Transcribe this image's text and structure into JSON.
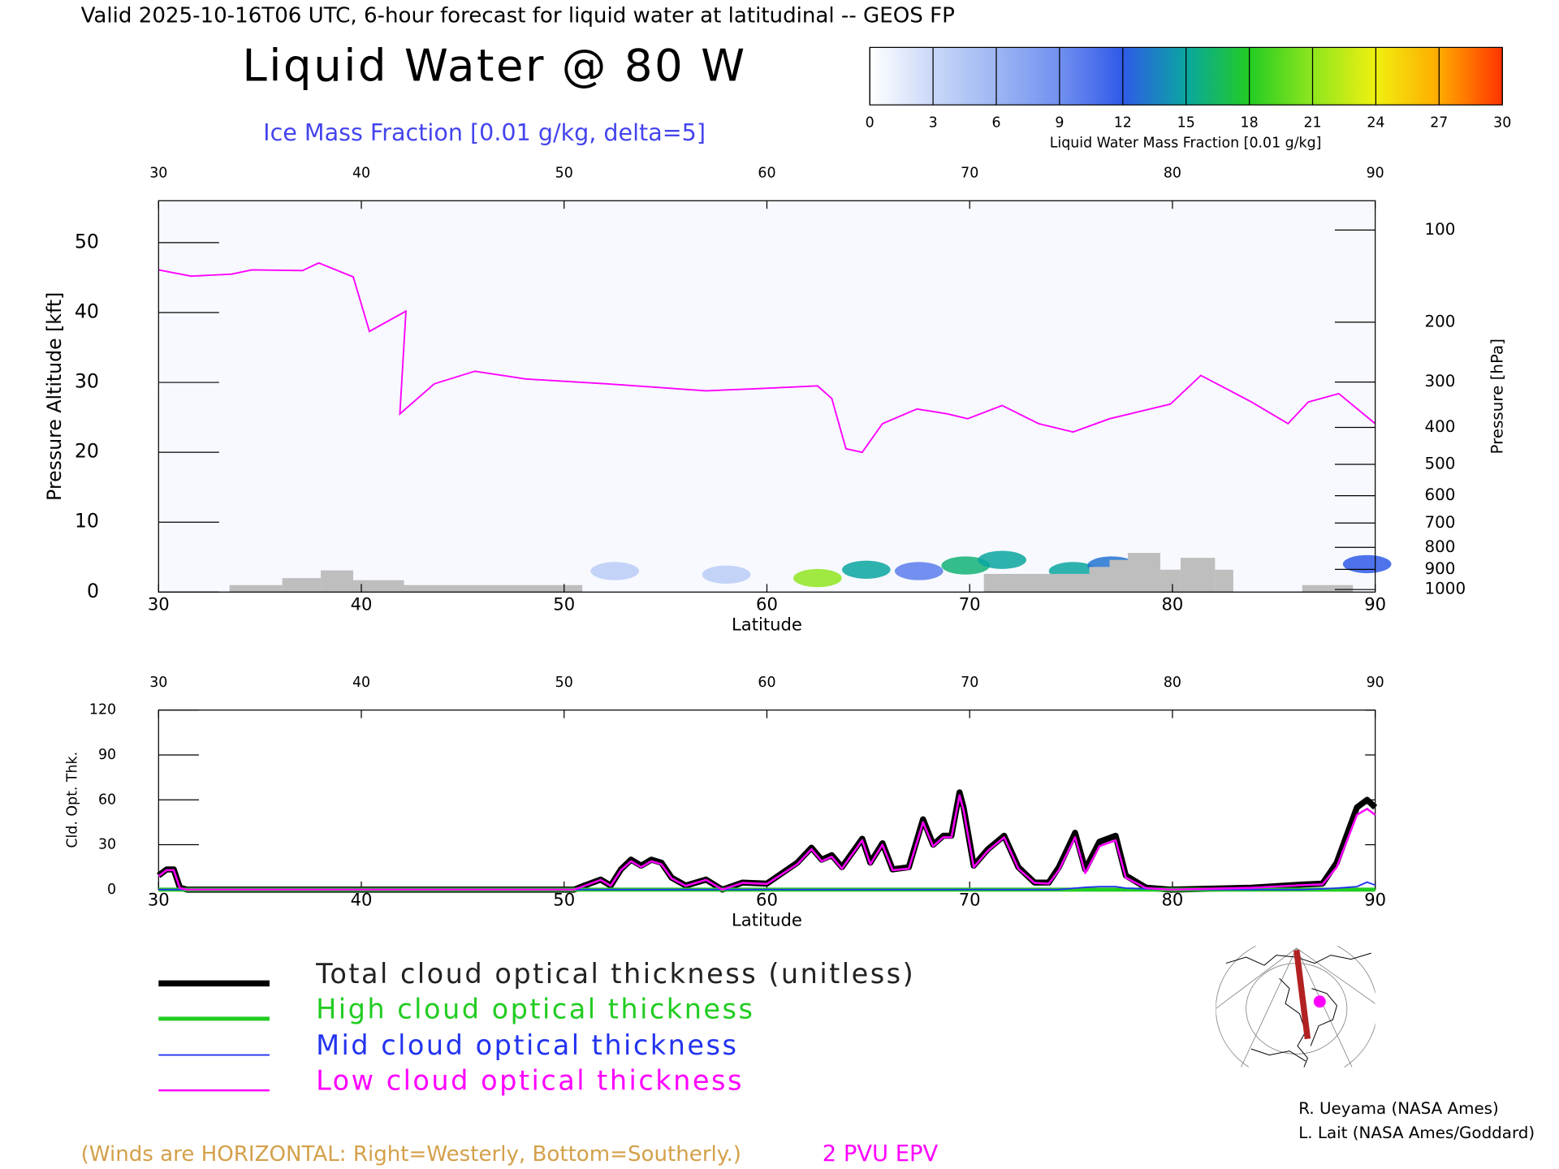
{
  "header": "Valid 2025-10-16T06 UTC, 6-hour forecast for liquid water at latitudinal -- GEOS FP",
  "chart_data": [
    {
      "type": "colorbar",
      "title": "Liquid Water Mass Fraction [0.01 g/kg]",
      "lim": [
        0,
        30
      ],
      "ticks": [
        0,
        3,
        6,
        9,
        12,
        15,
        18,
        21,
        24,
        27,
        30
      ],
      "colors": [
        "#ffffff",
        "#c9d8f8",
        "#9db6f4",
        "#7290f0",
        "#2f5ae8",
        "#0aa6a0",
        "#22cc22",
        "#8fe61e",
        "#f0f010",
        "#ffaa00",
        "#ff3300"
      ]
    },
    {
      "type": "cross-section",
      "title": "Liquid Water @ 80 W",
      "subtitle": "Ice Mass Fraction [0.01 g/kg, delta=5]",
      "x_label": "Latitude",
      "y_label": "Pressure Altitude [kft]",
      "y2_label": "Pressure [hPa]",
      "xlim": [
        30,
        90
      ],
      "xticks": [
        30,
        40,
        50,
        60,
        70,
        80,
        90
      ],
      "ylim": [
        0,
        56
      ],
      "yticks": [
        0,
        10,
        20,
        30,
        40,
        50
      ],
      "y2scale": "pressure-altitude",
      "y2lim": [
        1013.25,
        78.6
      ],
      "y2ticks": [
        100,
        200,
        300,
        400,
        500,
        600,
        700,
        800,
        900,
        1000
      ],
      "series": [
        {
          "name": "2 PVU EPV",
          "color": "#ff00ff",
          "x": [
            30,
            31.6,
            33.6,
            34.6,
            37.1,
            37.9,
            39.6,
            40.4,
            42.2,
            41.9,
            43.6,
            45.6,
            48.1,
            52.1,
            57.0,
            59.5,
            62.5,
            63.2,
            63.9,
            64.7,
            65.7,
            67.4,
            68.9,
            69.9,
            71.6,
            73.4,
            75.1,
            76.9,
            79.9,
            81.4,
            83.9,
            85.7,
            86.7,
            88.2,
            90
          ],
          "values": [
            46.1,
            45.2,
            45.5,
            46.1,
            46.0,
            47.1,
            45.1,
            37.3,
            40.2,
            25.5,
            29.8,
            31.6,
            30.5,
            29.8,
            28.8,
            29.1,
            29.5,
            27.7,
            20.5,
            20.0,
            24.1,
            26.2,
            25.5,
            24.8,
            26.7,
            24.1,
            22.9,
            24.8,
            26.9,
            31.0,
            27.2,
            24.1,
            27.2,
            28.4,
            24.1
          ]
        }
      ],
      "terrain": {
        "color": "#bebebe",
        "bins": [
          33.5,
          36.1,
          38.0,
          39.6,
          42.1,
          50.9,
          70.7,
          75.9,
          76.9,
          77.8,
          79.4,
          80.4,
          82.1,
          83.0,
          86.4,
          88.9
        ],
        "values": [
          1.0,
          2.0,
          3.1,
          1.7,
          1.0,
          0,
          2.6,
          3.6,
          4.6,
          5.6,
          3.2,
          4.9,
          3.2,
          0,
          1.0
        ]
      },
      "liquid_water": {
        "x": [
          52.5,
          58.0,
          62.5,
          64.9,
          67.5,
          69.8,
          71.6,
          75.1,
          77.0,
          89.6
        ],
        "y": [
          3.0,
          2.5,
          2.0,
          3.2,
          3.0,
          3.8,
          4.6,
          3.0,
          3.8,
          4.0
        ],
        "values": [
          4,
          4,
          21,
          15,
          10,
          16,
          15,
          15,
          13,
          12
        ]
      }
    },
    {
      "type": "line",
      "y_label": "Cld. Opt. Thk.",
      "x_label": "Latitude",
      "xlim": [
        30,
        90
      ],
      "xticks": [
        30,
        40,
        50,
        60,
        70,
        80,
        90
      ],
      "ylim": [
        0,
        120
      ],
      "yticks": [
        0,
        30,
        60,
        90,
        120
      ],
      "x": [
        30,
        30.4,
        30.75,
        31.05,
        31.4,
        50.5,
        51.0,
        51.8,
        52.3,
        52.8,
        53.3,
        53.8,
        54.3,
        54.8,
        55.3,
        56.0,
        57.0,
        57.8,
        58.8,
        60.0,
        61.5,
        62.2,
        62.7,
        63.2,
        63.7,
        64.7,
        65.1,
        65.7,
        66.2,
        67.0,
        67.7,
        68.2,
        68.7,
        69.1,
        69.5,
        69.7,
        70.2,
        70.9,
        71.7,
        72.4,
        73.2,
        73.9,
        74.4,
        75.2,
        75.7,
        76.4,
        77.2,
        77.7,
        78.7,
        79.9,
        83.9,
        86.4,
        87.4,
        88.1,
        89.1,
        89.6,
        90
      ],
      "series": [
        {
          "name": "Total cloud optical thickness (unitless)",
          "color": "#000000",
          "width": 6,
          "values": [
            9.4,
            13.5,
            13.5,
            1.3,
            0,
            0,
            2.7,
            6.7,
            2.7,
            13.5,
            20,
            16,
            20,
            18,
            8,
            2.7,
            6.7,
            0,
            4.7,
            4,
            18,
            28,
            20,
            23,
            15,
            34,
            18,
            31,
            13.5,
            15,
            47,
            30,
            36,
            36,
            65,
            55,
            16,
            27,
            36,
            15,
            4.7,
            4.7,
            15,
            38,
            13.5,
            32,
            36,
            9.4,
            1.3,
            0,
            1.3,
            3.4,
            4,
            18,
            55,
            60,
            55
          ]
        },
        {
          "name": "High cloud optical thickness",
          "color": "#22cc22",
          "width": 4,
          "values": [
            0,
            0,
            0,
            0,
            0,
            0,
            0,
            0,
            0,
            0,
            0,
            0,
            0,
            0,
            0,
            0,
            0,
            0,
            0,
            0,
            0,
            0,
            0,
            0,
            0,
            0,
            0,
            0,
            0,
            0,
            0,
            0,
            0,
            0,
            0,
            0,
            0,
            0,
            0,
            0,
            0,
            0,
            0,
            0,
            0,
            0,
            0,
            0,
            0,
            0,
            0,
            0,
            0,
            0,
            0,
            0,
            0
          ]
        },
        {
          "name": "Mid cloud optical thickness",
          "color": "#2233ee",
          "width": 1.5,
          "values": [
            0,
            0,
            0,
            0,
            0,
            0,
            0,
            0,
            0,
            0,
            0,
            0,
            0,
            0,
            0,
            0,
            0,
            0,
            0,
            0,
            0,
            0,
            0,
            0,
            0,
            0,
            0,
            0,
            0,
            0,
            0,
            0,
            0,
            0,
            0,
            0,
            0,
            0,
            0,
            0,
            0,
            0,
            0,
            1,
            1.5,
            2,
            2,
            1,
            0.5,
            0,
            0,
            0,
            0.5,
            1,
            2,
            5,
            3
          ]
        },
        {
          "name": "Low cloud optical thickness",
          "color": "#ff00ff",
          "width": 2,
          "values": [
            9,
            13,
            13,
            1,
            0,
            0,
            2.5,
            6.5,
            2.5,
            13,
            19,
            15,
            19,
            17,
            7.5,
            2.5,
            6.5,
            0,
            4.5,
            3.8,
            17,
            27,
            19,
            22,
            14,
            33,
            17,
            30,
            13,
            14,
            45,
            29,
            35,
            35,
            63,
            53,
            15,
            26,
            35,
            14,
            4.5,
            4,
            13,
            35,
            11,
            29,
            33,
            8,
            1,
            0,
            1.2,
            3,
            3.5,
            15,
            50,
            54,
            50
          ]
        }
      ]
    }
  ],
  "footer": {
    "winds_note": "(Winds are HORIZONTAL: Right=Westerly, Bottom=Southerly.)",
    "credits": [
      "R. Ueyama (NASA Ames)",
      "L. Lait (NASA Ames/Goddard)"
    ]
  }
}
